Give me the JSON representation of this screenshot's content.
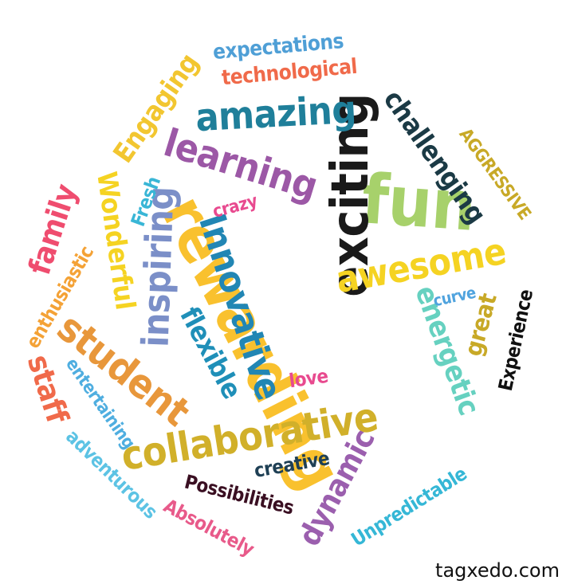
{
  "words": [
    {
      "text": "rewarding",
      "color": "#f9c12e"
    },
    {
      "text": "fun",
      "color": "#a7d16b"
    },
    {
      "text": "exciting",
      "color": "#1a1a1a"
    },
    {
      "text": "collaborative",
      "color": "#d1b02a"
    },
    {
      "text": "Innovative",
      "color": "#2186b4"
    },
    {
      "text": "inspiring",
      "color": "#7b8fc8"
    },
    {
      "text": "student",
      "color": "#e8973b"
    },
    {
      "text": "amazing",
      "color": "#1f7f9a"
    },
    {
      "text": "learning",
      "color": "#9c58a6"
    },
    {
      "text": "awesome",
      "color": "#f5d322"
    },
    {
      "text": "energetic",
      "color": "#66d1c0"
    },
    {
      "text": "challenging",
      "color": "#1b3a45"
    },
    {
      "text": "Wonderful",
      "color": "#f5d322"
    },
    {
      "text": "family",
      "color": "#ef4d6f"
    },
    {
      "text": "staff",
      "color": "#f06a4a"
    },
    {
      "text": "flexible",
      "color": "#1f8fb8"
    },
    {
      "text": "Engaging",
      "color": "#f2c630"
    },
    {
      "text": "dynamic",
      "color": "#9b5fae"
    },
    {
      "text": "great",
      "color": "#c8a927"
    },
    {
      "text": "technological",
      "color": "#f06a4a"
    },
    {
      "text": "expectations",
      "color": "#4f9fd6"
    },
    {
      "text": "Experience",
      "color": "#111111"
    },
    {
      "text": "Possibilities",
      "color": "#3a0f22"
    },
    {
      "text": "Absolutely",
      "color": "#e85a8a"
    },
    {
      "text": "Unpredictable",
      "color": "#35b7d6"
    },
    {
      "text": "adventurous",
      "color": "#5cc3e4"
    },
    {
      "text": "entertaining",
      "color": "#4faee0"
    },
    {
      "text": "enthusiastic",
      "color": "#f4a236"
    },
    {
      "text": "AGGRESSIVE",
      "color": "#c8a927"
    },
    {
      "text": "creative",
      "color": "#1f4055"
    },
    {
      "text": "Fresh",
      "color": "#39b6d6"
    },
    {
      "text": "crazy",
      "color": "#e84a8f"
    },
    {
      "text": "love",
      "color": "#e84a8f"
    },
    {
      "text": "curve",
      "color": "#4fa3de"
    }
  ],
  "credit": "tagxedo.com"
}
